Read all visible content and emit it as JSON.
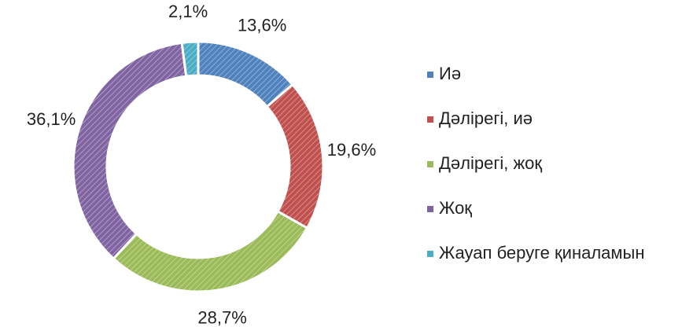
{
  "chart_data": {
    "type": "donut",
    "categories": [
      "Иә",
      "Дәлірегі, иә",
      "Дәлірегі, жоқ",
      "Жоқ",
      "Жауап беруге қиналамын"
    ],
    "values": [
      13.6,
      19.6,
      28.7,
      36.1,
      2.1
    ],
    "value_labels": [
      "13,6%",
      "19,6%",
      "28,7%",
      "36,1%",
      "2,1%"
    ],
    "colors": [
      "#4f81bd",
      "#c0504d",
      "#9bbb59",
      "#8064a2",
      "#4bacc6"
    ],
    "legend": "right"
  }
}
